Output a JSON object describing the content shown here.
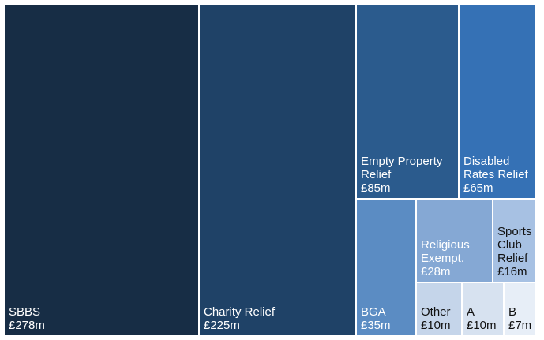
{
  "chart_data": {
    "type": "treemap",
    "title": "",
    "xlabel": "",
    "ylabel": "",
    "grid": false,
    "legend": "none",
    "tiles": [
      {
        "name": "SBBS",
        "label": "£278m",
        "value": 278,
        "color": "#172d45",
        "text_color": "#ffffff"
      },
      {
        "name": "Charity Relief",
        "label": "£225m",
        "value": 225,
        "color": "#1f4267",
        "text_color": "#ffffff"
      },
      {
        "name": "Empty Property Relief",
        "label": "£85m",
        "value": 85,
        "color": "#2b5b8d",
        "text_color": "#ffffff"
      },
      {
        "name": "Disabled Rates Relief",
        "label": "£65m",
        "value": 65,
        "color": "#3571b5",
        "text_color": "#ffffff"
      },
      {
        "name": "BGA",
        "label": "£35m",
        "value": 35,
        "color": "#5b8cc3",
        "text_color": "#ffffff"
      },
      {
        "name": "Religious Exempt.",
        "label": "£28m",
        "value": 28,
        "color": "#85a8d4",
        "text_color": "#ffffff"
      },
      {
        "name": "Sports Club Relief",
        "label": "£16m",
        "value": 16,
        "color": "#a7c1e3",
        "text_color": "#111111"
      },
      {
        "name": "Other",
        "label": "£10m",
        "value": 10,
        "color": "#c5d5ea",
        "text_color": "#111111"
      },
      {
        "name": "A",
        "label": "£10m",
        "value": 10,
        "color": "#d7e2f0",
        "text_color": "#111111"
      },
      {
        "name": "B",
        "label": "£7m",
        "value": 7,
        "color": "#e7eef7",
        "text_color": "#111111"
      }
    ]
  }
}
